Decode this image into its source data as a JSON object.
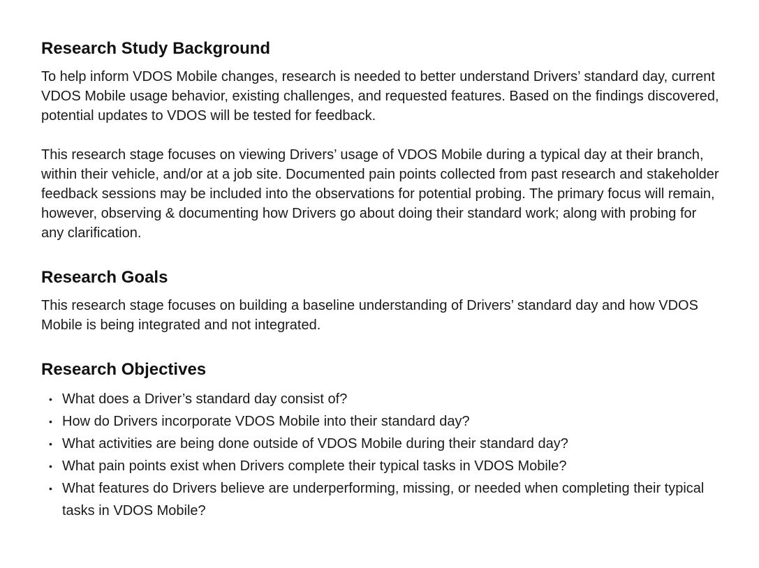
{
  "background": {
    "title": "Research Study Background",
    "paragraphs": [
      "To help inform VDOS Mobile changes, research is needed to better understand Drivers’ standard day, current VDOS Mobile usage behavior, existing challenges, and requested features. Based on the findings discovered, potential updates to VDOS will be tested for feedback.",
      "This research stage focuses on viewing Drivers’ usage of VDOS Mobile during a typical day at their branch, within their vehicle, and/or at a job site. Documented pain points collected from past research and stakeholder feedback sessions may be included into the observations for potential probing. The primary focus will remain, however, observing & documenting how Drivers go about doing their standard work; along with probing for any clarification."
    ]
  },
  "goals": {
    "title": "Research Goals",
    "paragraph": "This research stage focuses on building a baseline understanding of Drivers’ standard day and how VDOS Mobile is being integrated and not integrated."
  },
  "objectives": {
    "title": "Research Objectives",
    "bullet": "•",
    "items": [
      "What does a Driver’s standard day consist of?",
      "How do Drivers incorporate VDOS Mobile into their standard day?",
      "What activities are being done outside of VDOS Mobile during their standard day?",
      "What pain points exist when Drivers complete their typical tasks in VDOS Mobile?",
      "What features do Drivers believe are underperforming, missing, or needed when completing their typical tasks in VDOS Mobile?"
    ]
  }
}
